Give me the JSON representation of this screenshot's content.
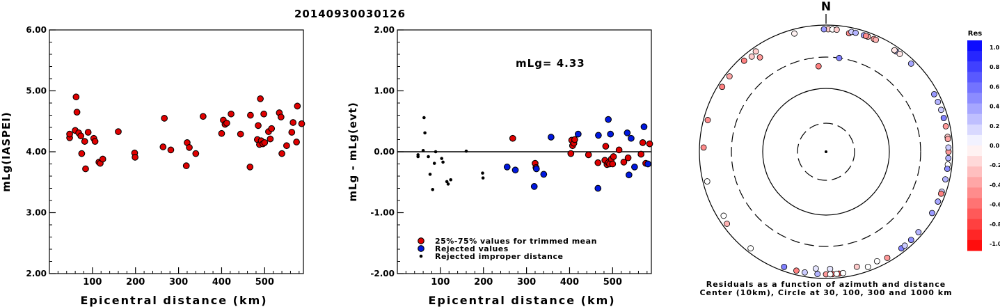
{
  "title": "20140930030126",
  "left_plot": {
    "ylabel": "mLg(IASPEI)",
    "xlabel": "Epicentral distance (km)",
    "xlim": [
      0,
      590
    ],
    "ylim": [
      2.0,
      6.0
    ],
    "xticks": [
      100,
      200,
      300,
      400,
      500
    ],
    "yticks": [
      2.0,
      3.0,
      4.0,
      5.0,
      6.0
    ],
    "ytick_labels": [
      "2.00",
      "3.00",
      "4.00",
      "5.00",
      "6.00"
    ],
    "point_color": "#e00000"
  },
  "right_plot": {
    "ylabel": "mLg - mLg(evt)",
    "xlabel": "Epicentral distance (km)",
    "annotation": "mLg= 4.33",
    "xlim": [
      0,
      590
    ],
    "ylim": [
      -2.0,
      2.0
    ],
    "xticks": [
      100,
      200,
      300,
      400,
      500
    ],
    "yticks": [
      -2.0,
      -1.0,
      0.0,
      1.0,
      2.0
    ],
    "ytick_labels": [
      "-2.00",
      "-1.00",
      "0.00",
      "1.00",
      "2.00"
    ],
    "legend": [
      {
        "label": "25%-75% values for trimmed mean",
        "color": "#e00000"
      },
      {
        "label": "Rejected values",
        "color": "#0018e0"
      },
      {
        "label": "Rejected improper distance",
        "color": "#000000"
      }
    ]
  },
  "polar_plot": {
    "north_label": "N",
    "caption_line1": "Residuals as a function of azimuth and distance",
    "caption_line2": "Center (10km), Circle at 30, 100, 300 and 1000 km"
  },
  "colorbar": {
    "title": "Res",
    "ticks": [
      "1.0",
      "0.8",
      "0.6",
      "0.4",
      "0.2",
      "0.0",
      "-0.2",
      "-0.4",
      "-0.6",
      "-0.8",
      "-1.0"
    ]
  },
  "chart_data": [
    {
      "type": "scatter",
      "name": "mLg(IASPEI) vs distance",
      "points": [
        [
          47,
          4.23
        ],
        [
          47,
          4.29
        ],
        [
          60,
          4.35
        ],
        [
          62,
          4.9
        ],
        [
          64,
          4.65
        ],
        [
          68,
          4.31
        ],
        [
          73,
          4.26
        ],
        [
          75,
          3.97
        ],
        [
          82,
          4.17
        ],
        [
          84,
          3.72
        ],
        [
          90,
          4.32
        ],
        [
          103,
          4.22
        ],
        [
          106,
          4.17
        ],
        [
          115,
          3.83
        ],
        [
          118,
          3.81
        ],
        [
          124,
          3.88
        ],
        [
          160,
          4.33
        ],
        [
          198,
          3.98
        ],
        [
          199,
          3.91
        ],
        [
          264,
          4.08
        ],
        [
          267,
          4.55
        ],
        [
          282,
          4.03
        ],
        [
          318,
          3.77
        ],
        [
          320,
          4.15
        ],
        [
          325,
          4.07
        ],
        [
          340,
          3.97
        ],
        [
          357,
          4.58
        ],
        [
          400,
          4.3
        ],
        [
          404,
          4.52
        ],
        [
          408,
          4.45
        ],
        [
          412,
          4.47
        ],
        [
          422,
          4.62
        ],
        [
          444,
          4.29
        ],
        [
          466,
          3.75
        ],
        [
          467,
          4.6
        ],
        [
          483,
          4.2
        ],
        [
          485,
          4.43
        ],
        [
          488,
          4.12
        ],
        [
          490,
          4.87
        ],
        [
          492,
          4.18
        ],
        [
          496,
          4.13
        ],
        [
          498,
          4.62
        ],
        [
          500,
          4.15
        ],
        [
          509,
          4.33
        ],
        [
          513,
          4.21
        ],
        [
          516,
          4.38
        ],
        [
          534,
          4.64
        ],
        [
          538,
          4.57
        ],
        [
          540,
          3.97
        ],
        [
          551,
          4.1
        ],
        [
          563,
          4.32
        ],
        [
          566,
          4.48
        ],
        [
          574,
          4.16
        ],
        [
          576,
          4.75
        ],
        [
          586,
          4.46
        ]
      ]
    },
    {
      "type": "scatter",
      "name": "mLg - mLg(evt) vs distance",
      "reference_line_y": 0.0,
      "series": [
        {
          "name": "25%-75% values for trimmed mean",
          "points": [
            [
              268,
              0.22
            ],
            [
              320,
              -0.19
            ],
            [
              322,
              -0.26
            ],
            [
              403,
              -0.03
            ],
            [
              405,
              0.19
            ],
            [
              407,
              0.1
            ],
            [
              410,
              0.14
            ],
            [
              412,
              0.2
            ],
            [
              444,
              -0.05
            ],
            [
              466,
              -0.18
            ],
            [
              482,
              -0.14
            ],
            [
              484,
              0.09
            ],
            [
              487,
              -0.21
            ],
            [
              490,
              -0.18
            ],
            [
              493,
              -0.2
            ],
            [
              497,
              -0.12
            ],
            [
              500,
              -0.2
            ],
            [
              502,
              -0.08
            ],
            [
              515,
              0.03
            ],
            [
              526,
              -0.17
            ],
            [
              536,
              -0.1
            ],
            [
              566,
              -0.04
            ],
            [
              570,
              0.15
            ],
            [
              577,
              -0.19
            ],
            [
              586,
              0.13
            ]
          ]
        },
        {
          "name": "Rejected values",
          "points": [
            [
              255,
              -0.25
            ],
            [
              274,
              -0.3
            ],
            [
              318,
              -0.57
            ],
            [
              323,
              -0.28
            ],
            [
              340,
              -0.37
            ],
            [
              357,
              0.24
            ],
            [
              420,
              0.29
            ],
            [
              466,
              -0.6
            ],
            [
              467,
              0.27
            ],
            [
              490,
              0.53
            ],
            [
              495,
              0.29
            ],
            [
              534,
              0.31
            ],
            [
              538,
              -0.38
            ],
            [
              543,
              0.22
            ],
            [
              551,
              -0.25
            ],
            [
              573,
              0.41
            ],
            [
              582,
              -0.2
            ]
          ]
        },
        {
          "name": "Rejected improper distance",
          "points": [
            [
              48,
              -0.08
            ],
            [
              48,
              -0.05
            ],
            [
              60,
              0.02
            ],
            [
              62,
              0.56
            ],
            [
              64,
              0.31
            ],
            [
              72,
              -0.08
            ],
            [
              76,
              -0.37
            ],
            [
              82,
              -0.62
            ],
            [
              86,
              -0.19
            ],
            [
              89,
              0.0
            ],
            [
              103,
              -0.11
            ],
            [
              106,
              -0.17
            ],
            [
              115,
              -0.49
            ],
            [
              118,
              -0.53
            ],
            [
              124,
              -0.46
            ],
            [
              160,
              0.01
            ],
            [
              198,
              -0.35
            ],
            [
              199,
              -0.43
            ]
          ]
        }
      ]
    },
    {
      "type": "polar-scatter",
      "name": "Residuals as a function of azimuth and distance",
      "rings_km": [
        30,
        100,
        300,
        1000
      ],
      "center_km": 10,
      "points": [
        {
          "az": 11,
          "dist": 800,
          "res": -0.45
        },
        {
          "az": 1,
          "dist": 895,
          "res": -0.2
        },
        {
          "az": -15,
          "dist": 850,
          "res": -0.05
        },
        {
          "az": 18,
          "dist": 890,
          "res": 0.35
        },
        {
          "az": 35,
          "dist": 870,
          "res": 0.25
        },
        {
          "az": 37,
          "dist": 980,
          "res": -0.1
        },
        {
          "az": 20,
          "dist": 1600,
          "res": -0.3
        },
        {
          "az": 23,
          "dist": 1450,
          "res": -0.4
        },
        {
          "az": 24,
          "dist": 1500,
          "res": -0.3
        },
        {
          "az": 34,
          "dist": 850,
          "res": -0.5
        },
        {
          "az": 34,
          "dist": 1300,
          "res": -0.1
        },
        {
          "az": -5,
          "dist": 220,
          "res": -0.5
        },
        {
          "az": 8,
          "dist": 300,
          "res": 0.5
        },
        {
          "az": -35,
          "dist": 650,
          "res": -0.4
        },
        {
          "az": -38,
          "dist": 800,
          "res": -0.2
        },
        {
          "az": -42,
          "dist": 1600,
          "res": -0.5
        },
        {
          "az": -35,
          "dist": 1800,
          "res": -0.2
        },
        {
          "az": -52,
          "dist": 2200,
          "res": -0.35
        },
        {
          "az": -58,
          "dist": 2700,
          "res": -0.5
        },
        {
          "az": -75,
          "dist": 1800,
          "res": -0.45
        },
        {
          "az": -88,
          "dist": 2500,
          "res": -0.45
        },
        {
          "az": -104,
          "dist": 2300,
          "res": 0.0
        },
        {
          "az": -122,
          "dist": 800,
          "res": 0.0
        },
        {
          "az": -126,
          "dist": 1700,
          "res": -0.3
        },
        {
          "az": -142,
          "dist": 1900,
          "res": 0.0
        },
        {
          "az": -166,
          "dist": 3600,
          "res": -0.5
        },
        {
          "az": 174,
          "dist": 2500,
          "res": -0.7
        },
        {
          "az": 177,
          "dist": 3000,
          "res": -0.6
        },
        {
          "az": 90,
          "dist": 1000,
          "res": -0.4
        },
        {
          "az": 96,
          "dist": 1200,
          "res": 0.0
        },
        {
          "az": 62,
          "dist": 1500,
          "res": 0.4
        },
        {
          "az": 66,
          "dist": 1800,
          "res": 0.3
        },
        {
          "az": 70,
          "dist": 1400,
          "res": 0.2
        },
        {
          "az": 74,
          "dist": 2400,
          "res": 0.5
        },
        {
          "az": 78,
          "dist": 2200,
          "res": -0.4
        },
        {
          "az": 83,
          "dist": 2100,
          "res": -0.2
        },
        {
          "az": 84,
          "dist": 2500,
          "res": -0.35
        },
        {
          "az": 88,
          "dist": 2700,
          "res": 0.2
        },
        {
          "az": 93,
          "dist": 2600,
          "res": 0.3
        },
        {
          "az": 98,
          "dist": 2500,
          "res": 0.45
        },
        {
          "az": 103,
          "dist": 2800,
          "res": 0.3
        },
        {
          "az": 109,
          "dist": 2400,
          "res": 0.2
        },
        {
          "az": 114,
          "dist": 2400,
          "res": 0.35
        },
        {
          "az": 120,
          "dist": 2700,
          "res": 0.4
        },
        {
          "az": 131,
          "dist": 2500,
          "res": 0.3
        },
        {
          "az": 136,
          "dist": 2500,
          "res": 0.45
        },
        {
          "az": 142,
          "dist": 2900,
          "res": 0.5
        },
        {
          "az": 150,
          "dist": 2300,
          "res": -0.4
        },
        {
          "az": 140,
          "dist": 1500,
          "res": 0.2
        },
        {
          "az": 110,
          "dist": 1100,
          "res": -0.5
        },
        {
          "az": 160,
          "dist": 1500,
          "res": 0.0
        },
        {
          "az": 175,
          "dist": 900,
          "res": 0.0
        },
        {
          "az": -176,
          "dist": 1100,
          "res": 0.3
        },
        {
          "az": -170,
          "dist": 1200,
          "res": 0.2
        },
        {
          "az": 178,
          "dist": 700,
          "res": 0.1
        },
        {
          "az": 155,
          "dist": 800,
          "res": 0.0
        },
        {
          "az": 165,
          "dist": 750,
          "res": -0.2
        },
        {
          "az": 172,
          "dist": 1300,
          "res": 0.0
        },
        {
          "az": 180,
          "dist": 1350,
          "res": -0.4
        },
        {
          "az": -160,
          "dist": 1000,
          "res": 0.5
        },
        {
          "az": -175,
          "dist": 700,
          "res": 0.1
        },
        {
          "az": 178,
          "dist": 1050,
          "res": 0.0
        },
        {
          "az": 3,
          "dist": 1500,
          "res": 0.0
        },
        {
          "az": -1,
          "dist": 2200,
          "res": 0.4
        },
        {
          "az": 5,
          "dist": 2000,
          "res": -0.2
        },
        {
          "az": 12,
          "dist": 2300,
          "res": 0.2
        },
        {
          "az": 14,
          "dist": 2500,
          "res": 0.3
        },
        {
          "az": 19,
          "dist": 2400,
          "res": -0.45
        },
        {
          "az": 44,
          "dist": 2400,
          "res": 0.35
        }
      ]
    }
  ]
}
